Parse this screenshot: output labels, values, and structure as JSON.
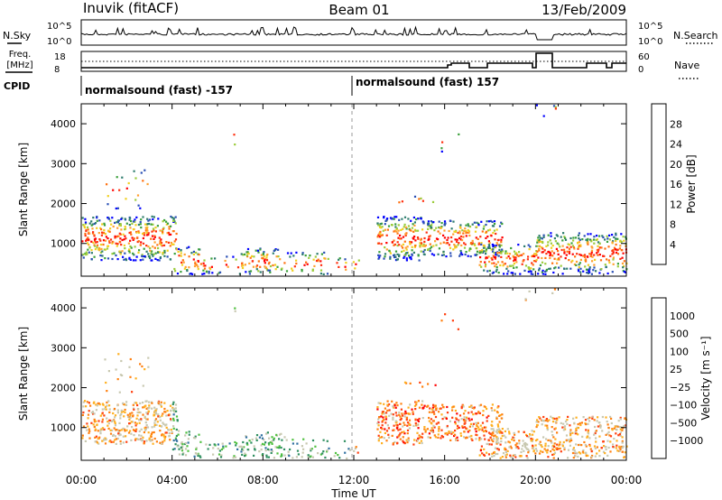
{
  "header": {
    "station": "Inuvik (fitACF)",
    "beam": "Beam 01",
    "date": "13/Feb/2009"
  },
  "top_panels": {
    "nsky_label": "N.Sky",
    "nsky_ticks": [
      "10^5",
      "10^0"
    ],
    "nsearch_label": "N.Search",
    "nsearch_ticks": [
      "10^5",
      "10^0"
    ],
    "freq_label_1": "Freq.",
    "freq_label_2": "[MHz]",
    "freq_ticks": [
      "18",
      "8"
    ],
    "nave_label": "Nave",
    "nave_ticks": [
      "60",
      "0"
    ],
    "cpid_label": "CPID",
    "cpid_segments": [
      {
        "label": "normalsound (fast) -157",
        "start_hour": 0,
        "end_hour": 12
      },
      {
        "label": "normalsound (fast) 157",
        "start_hour": 12,
        "end_hour": 24
      }
    ]
  },
  "chart_data": [
    {
      "type": "heatmap",
      "parameter": "Power",
      "ylabel": "Slant Range [km]",
      "xlabel": "",
      "ylim": [
        180,
        4500
      ],
      "yticks": [
        1000,
        2000,
        3000,
        4000
      ],
      "x_range_hours": [
        0,
        24
      ],
      "colorbar": {
        "label": "Power [dB]",
        "ticks": [
          "4",
          "8",
          "12",
          "16",
          "20",
          "24",
          "28"
        ],
        "colors": [
          "#0000ff",
          "#2a4fb5",
          "#2e7d6e",
          "#3aa03a",
          "#9ccc3c",
          "#f0d020",
          "#ffa030",
          "#ff7010",
          "#ff3010",
          "#ff0000"
        ]
      }
    },
    {
      "type": "heatmap",
      "parameter": "Velocity",
      "ylabel": "Slant Range [km]",
      "xlabel": "Time UT",
      "ylim": [
        180,
        4500
      ],
      "yticks": [
        1000,
        2000,
        3000,
        4000
      ],
      "x_range_hours": [
        0,
        24
      ],
      "xticks": [
        "00:00",
        "04:00",
        "08:00",
        "12:00",
        "16:00",
        "20:00",
        "00:00"
      ],
      "colorbar": {
        "label": "Velocity [m s⁻¹]",
        "ticks": [
          "1000",
          "500",
          "100",
          "25",
          "−25",
          "−100",
          "−500",
          "−1000"
        ],
        "colors": [
          "#1030c0",
          "#3070a0",
          "#309060",
          "#50c040",
          "#c8c8b0",
          "#c8c8b0",
          "#ffb020",
          "#ff8010",
          "#ff4010",
          "#ff0000"
        ]
      }
    }
  ]
}
